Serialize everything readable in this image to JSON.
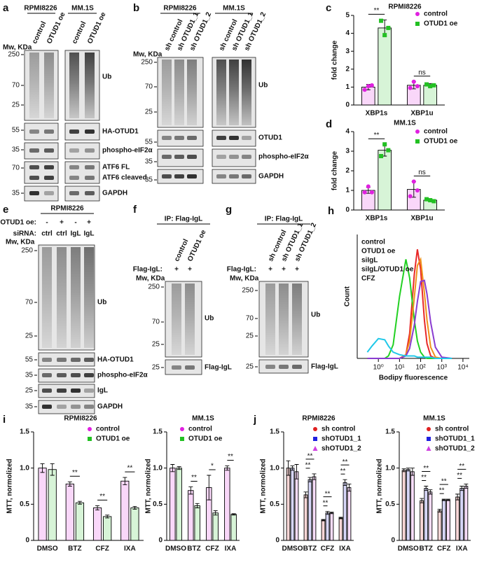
{
  "blot_panels": [
    {
      "label": "a",
      "groups": [
        {
          "name": "RPMI8226",
          "lanes": [
            "control",
            "OTUD1 oe"
          ]
        },
        {
          "name": "MM.1S",
          "lanes": [
            "control",
            "OTUD1 oe"
          ]
        }
      ],
      "mw_label": "Mw, KDa",
      "blots": [
        {
          "labels": [
            "Ub"
          ],
          "markers": [
            250,
            70,
            25
          ]
        },
        {
          "labels": [
            "HA-OTUD1"
          ],
          "markers": [
            55
          ]
        },
        {
          "labels": [
            "phospho-eIF2α"
          ],
          "markers": [
            35
          ]
        },
        {
          "labels": [
            "ATF6 FL",
            "ATF6 cleaved"
          ],
          "markers": [
            70
          ]
        },
        {
          "labels": [
            "GAPDH"
          ],
          "markers": [
            35
          ]
        }
      ]
    },
    {
      "label": "b",
      "groups": [
        {
          "name": "RPMI8226",
          "lanes": [
            "sh control",
            "sh OTUD1_1",
            "sh OTUD1_2"
          ]
        },
        {
          "name": "MM.1S",
          "lanes": [
            "sh control",
            "sh OTUD1_1",
            "sh OTUD1_2"
          ]
        }
      ],
      "mw_label": "Mw, KDa",
      "blots": [
        {
          "labels": [
            "Ub"
          ],
          "markers": [
            250,
            70,
            25
          ]
        },
        {
          "labels": [
            "OTUD1"
          ],
          "markers": [
            55
          ]
        },
        {
          "labels": [
            "phospho-eIF2α"
          ],
          "markers": [
            35
          ]
        },
        {
          "labels": [
            "GAPDH"
          ],
          "markers": [
            35
          ]
        }
      ]
    },
    {
      "label": "e",
      "header": "RPMI8226",
      "conditions": [
        {
          "name": "OTUD1 oe:",
          "values": [
            "-",
            "+",
            "-",
            "+"
          ]
        },
        {
          "name": "siRNA:",
          "values": [
            "ctrl",
            "ctrl",
            "IgL",
            "IgL"
          ]
        }
      ],
      "mw_label": "Mw, KDa",
      "blots": [
        {
          "labels": [
            "Ub"
          ],
          "markers": [
            250,
            70,
            25
          ]
        },
        {
          "labels": [
            "HA-OTUD1"
          ],
          "markers": [
            55
          ]
        },
        {
          "labels": [
            "phospho-eIF2α"
          ],
          "markers": [
            35
          ]
        },
        {
          "labels": [
            "IgL"
          ],
          "markers": [
            25
          ]
        },
        {
          "labels": [
            "GAPDH"
          ],
          "markers": [
            35
          ]
        }
      ]
    },
    {
      "label": "f",
      "header": "IP: Flag-IgL",
      "lanes": [
        "control",
        "OTUD1 oe"
      ],
      "conditions": [
        {
          "name": "Flag-IgL:",
          "values": [
            "+",
            "+"
          ]
        }
      ],
      "mw_label": "Mw, KDa",
      "blots": [
        {
          "labels": [
            "Ub"
          ],
          "markers": [
            250,
            70,
            25
          ]
        },
        {
          "labels": [
            "Flag-IgL"
          ],
          "markers": [
            25
          ]
        }
      ]
    },
    {
      "label": "g",
      "header": "IP: Flag-IgL",
      "lanes": [
        "sh control",
        "sh OTUD1_1",
        "sh OTUD1_2"
      ],
      "conditions": [
        {
          "name": "Flag-IgL:",
          "values": [
            "+",
            "+",
            "+"
          ]
        }
      ],
      "mw_label": "Mw, KDa",
      "blots": [
        {
          "labels": [
            "Ub"
          ],
          "markers": [
            250,
            70,
            25
          ]
        },
        {
          "labels": [
            "Flag-IgL"
          ],
          "markers": [
            25
          ]
        }
      ]
    }
  ],
  "chart_data": [
    {
      "type": "bar",
      "panel_label": "c",
      "title": "RPMI8226",
      "y_label": "fold change",
      "categories": [
        "XBP1s",
        "XBP1u"
      ],
      "series": [
        {
          "name": "control",
          "color": "#e020e0",
          "marker": "circle",
          "values": [
            1.0,
            1.1
          ],
          "errors": [
            0.15,
            0.2
          ],
          "points": [
            [
              0.85,
              1.05,
              1.1
            ],
            [
              0.95,
              1.3,
              1.05
            ]
          ]
        },
        {
          "name": "OTUD1 oe",
          "color": "#22c022",
          "marker": "square",
          "values": [
            4.3,
            1.1
          ],
          "errors": [
            0.45,
            0.1
          ],
          "points": [
            [
              4.7,
              3.9,
              4.3
            ],
            [
              1.15,
              1.05,
              1.1
            ]
          ]
        }
      ],
      "ylim": [
        0,
        5
      ],
      "yticks": [
        0,
        1,
        2,
        3,
        4,
        5
      ],
      "significance": [
        "**",
        "ns"
      ]
    },
    {
      "type": "bar",
      "panel_label": "d",
      "title": "MM.1S",
      "y_label": "fold change",
      "categories": [
        "XBP1s",
        "XBP1u"
      ],
      "series": [
        {
          "name": "control",
          "color": "#e020e0",
          "marker": "circle",
          "values": [
            1.0,
            1.05
          ],
          "errors": [
            0.15,
            0.4
          ],
          "points": [
            [
              0.9,
              1.2,
              0.9
            ],
            [
              0.7,
              1.45,
              1.0
            ]
          ]
        },
        {
          "name": "OTUD1 oe",
          "color": "#22c022",
          "marker": "square",
          "values": [
            3.05,
            0.5
          ],
          "errors": [
            0.3,
            0.05
          ],
          "points": [
            [
              2.75,
              3.35,
              3.05
            ],
            [
              0.55,
              0.5,
              0.45
            ]
          ]
        }
      ],
      "ylim": [
        0,
        4
      ],
      "yticks": [
        0,
        1,
        2,
        3,
        4
      ],
      "significance": [
        "**",
        "ns"
      ]
    },
    {
      "type": "histogram-line",
      "panel_label": "h",
      "x_label": "Bodipy fluorescence",
      "y_label": "Count",
      "log_x": true,
      "x": [
        0.3,
        0.5,
        1,
        2,
        3,
        5,
        10,
        20,
        30,
        50,
        70,
        100,
        150,
        200,
        300,
        500,
        1000,
        3000
      ],
      "series": [
        {
          "name": "control",
          "color": "#e82828",
          "values": [
            0,
            0,
            0,
            0,
            0,
            0,
            0,
            3,
            20,
            68,
            88,
            72,
            31,
            12,
            2,
            0,
            0,
            0
          ]
        },
        {
          "name": "OTUD1 oe",
          "color": "#22d022",
          "values": [
            0,
            0,
            0,
            0,
            2,
            11,
            50,
            80,
            65,
            31,
            14,
            5,
            1,
            0,
            0,
            0,
            0,
            0
          ]
        },
        {
          "name": "siIgL",
          "color": "#f0901a",
          "values": [
            0,
            0,
            0,
            0,
            0,
            0,
            0,
            3,
            14,
            49,
            75,
            80,
            53,
            31,
            9,
            1,
            0,
            0
          ]
        },
        {
          "name": "siIgL/OTUD1 oe",
          "color": "#8a3cd0",
          "values": [
            0,
            0,
            0,
            0,
            0,
            0,
            0,
            2,
            8,
            27,
            46,
            62,
            63,
            52,
            29,
            9,
            1,
            0
          ]
        },
        {
          "name": "CFZ",
          "color": "#20c8e8",
          "values": [
            5,
            10,
            16,
            15,
            10,
            5,
            3,
            2,
            2,
            2,
            1,
            1,
            1,
            1,
            1,
            0,
            0,
            0
          ]
        }
      ],
      "xlim": [
        0.1,
        20000
      ],
      "ylim": [
        0,
        100
      ],
      "xticks": [
        {
          "value": 1,
          "label": "10⁰"
        },
        {
          "value": 10,
          "label": "10¹"
        },
        {
          "value": 100,
          "label": "10²"
        },
        {
          "value": 1000,
          "label": "10³"
        },
        {
          "value": 10000,
          "label": "10⁴"
        }
      ]
    },
    {
      "type": "bar",
      "panel_label": "i",
      "title": "RPMI8226",
      "y_label": "MTT, normolized",
      "categories": [
        "DMSO",
        "BTZ",
        "CFZ",
        "IXA"
      ],
      "series": [
        {
          "name": "control",
          "color": "#e020e0",
          "marker": "circle",
          "values": [
            1.0,
            0.78,
            0.45,
            0.82
          ],
          "errors": [
            0.06,
            0.03,
            0.03,
            0.05
          ]
        },
        {
          "name": "OTUD1 oe",
          "color": "#22c022",
          "marker": "square",
          "values": [
            0.98,
            0.52,
            0.33,
            0.45
          ],
          "errors": [
            0.08,
            0.02,
            0.02,
            0.02
          ]
        }
      ],
      "ylim": [
        0,
        1.5
      ],
      "yticks": [
        0,
        0.5,
        {
          "value": 1,
          "label": "1.0"
        },
        1.5
      ],
      "significance": [
        null,
        "**",
        "**",
        "**"
      ]
    },
    {
      "type": "bar",
      "title": "MM.1S",
      "y_label": "MTT, normolized",
      "categories": [
        "DMSO",
        "BTZ",
        "CFZ",
        "IXA"
      ],
      "series": [
        {
          "name": "control",
          "color": "#e020e0",
          "marker": "circle",
          "values": [
            1.0,
            0.69,
            0.73,
            1.0
          ],
          "errors": [
            0.05,
            0.05,
            0.17,
            0.03
          ]
        },
        {
          "name": "OTUD1 oe",
          "color": "#22c022",
          "marker": "square",
          "values": [
            1.0,
            0.48,
            0.38,
            0.36
          ],
          "errors": [
            0.02,
            0.03,
            0.03,
            0.01
          ]
        }
      ],
      "ylim": [
        0,
        1.5
      ],
      "yticks": [
        0,
        0.5,
        {
          "value": 1,
          "label": "1.0"
        },
        1.5
      ],
      "significance": [
        null,
        "**",
        "*",
        "**"
      ]
    },
    {
      "type": "bar",
      "panel_label": "j",
      "title": "RPMI8226",
      "y_label": "MTT, normolized",
      "categories": [
        "DMSO",
        "BTZ",
        "CFZ",
        "IXA"
      ],
      "series": [
        {
          "name": "sh control",
          "color": "#e02020",
          "marker": "circle",
          "values": [
            1.0,
            0.63,
            0.28,
            0.31
          ],
          "errors": [
            0.1,
            0.04,
            0.01,
            0.01
          ]
        },
        {
          "name": "shOTUD1_1",
          "color": "#2020e0",
          "marker": "square",
          "values": [
            1.0,
            0.84,
            0.38,
            0.8
          ],
          "errors": [
            0.03,
            0.03,
            0.02,
            0.04
          ]
        },
        {
          "name": "shOTUD1_2",
          "color": "#d040e0",
          "marker": "triangle",
          "values": [
            0.95,
            0.88,
            0.38,
            0.73
          ],
          "errors": [
            0.1,
            0.04,
            0.01,
            0.05
          ]
        }
      ],
      "ylim": [
        0,
        1.5
      ],
      "yticks": [
        0,
        0.5,
        {
          "value": 1,
          "label": "1.0"
        },
        1.5
      ],
      "significance": [
        null,
        [
          "**",
          "**"
        ],
        [
          "**",
          "**"
        ],
        [
          "**",
          "**"
        ]
      ]
    },
    {
      "type": "bar",
      "title": "MM.1S",
      "y_label": "MTT, normolized",
      "categories": [
        "DMSO",
        "BTZ",
        "CFZ",
        "IXA"
      ],
      "series": [
        {
          "name": "sh control",
          "color": "#e02020",
          "marker": "circle",
          "values": [
            0.97,
            0.55,
            0.41,
            0.6
          ],
          "errors": [
            0.02,
            0.03,
            0.02,
            0.04
          ]
        },
        {
          "name": "shOTUD1_1",
          "color": "#2020e0",
          "marker": "square",
          "values": [
            0.98,
            0.72,
            0.56,
            0.72
          ],
          "errors": [
            0.02,
            0.03,
            0.01,
            0.03
          ]
        },
        {
          "name": "shOTUD1_2",
          "color": "#d040e0",
          "marker": "triangle",
          "values": [
            0.95,
            0.67,
            0.56,
            0.75
          ],
          "errors": [
            0.05,
            0.03,
            0.01,
            0.03
          ]
        }
      ],
      "ylim": [
        0,
        1.5
      ],
      "yticks": [
        0,
        0.5,
        {
          "value": 1,
          "label": "1.0"
        },
        1.5
      ],
      "significance": [
        null,
        [
          "**",
          "**"
        ],
        [
          "**",
          "**"
        ],
        [
          "**",
          "**"
        ]
      ]
    }
  ]
}
